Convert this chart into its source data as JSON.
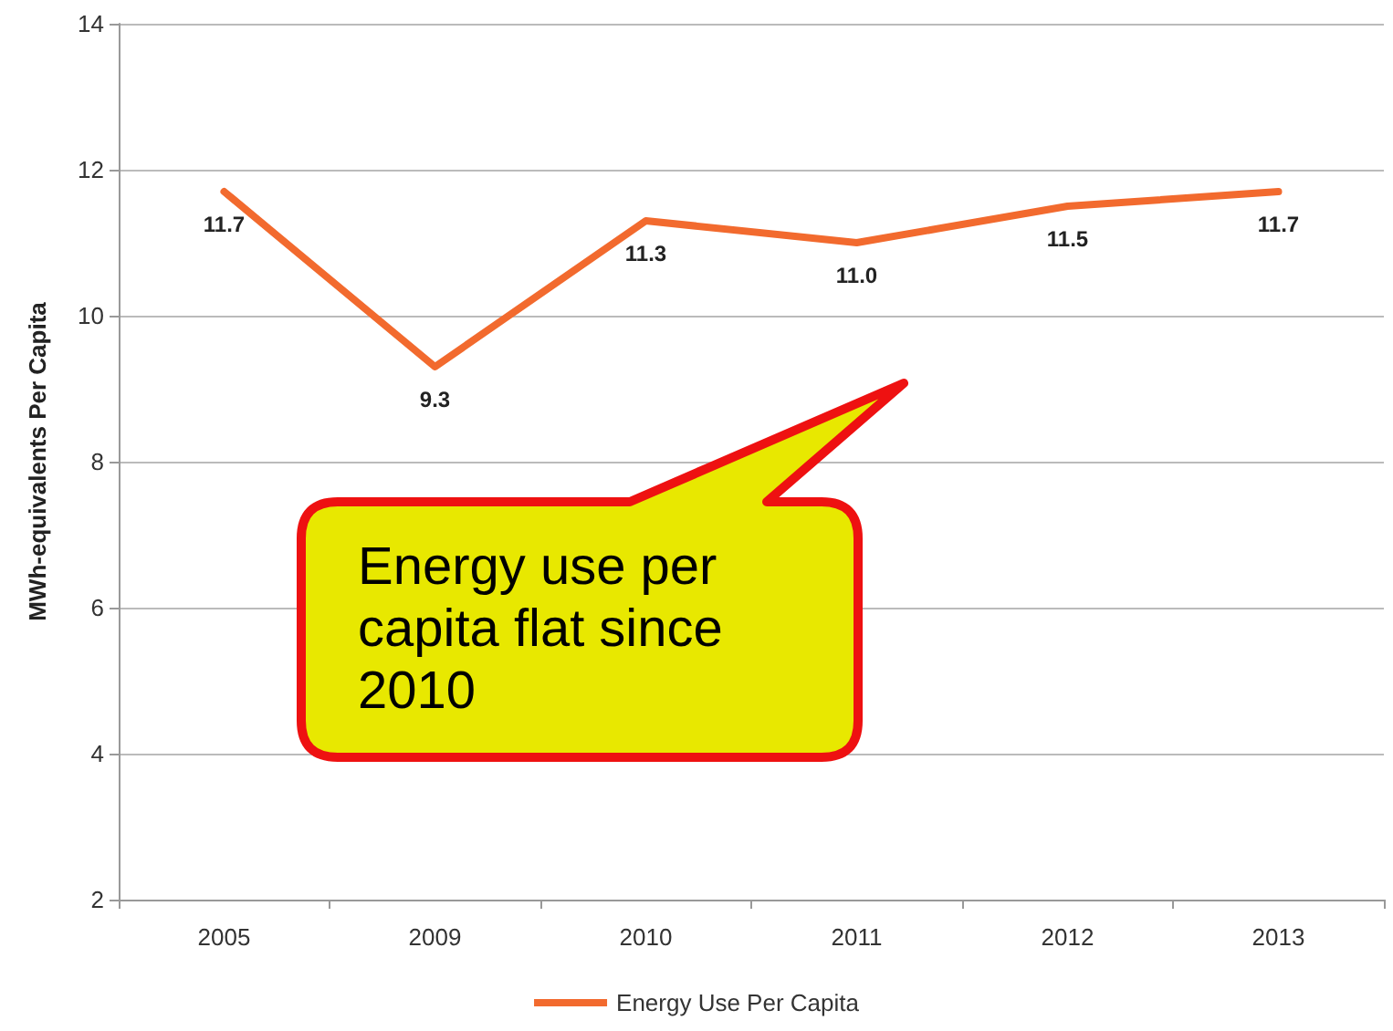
{
  "chart_data": {
    "type": "line",
    "ylabel": "MWh-equivalents Per Capita",
    "categories": [
      "2005",
      "2009",
      "2010",
      "2011",
      "2012",
      "2013"
    ],
    "series": [
      {
        "name": "Energy Use Per Capita",
        "color": "#f26a2e",
        "values": [
          11.7,
          9.3,
          11.3,
          11.0,
          11.5,
          11.7
        ],
        "value_labels": [
          "11.7",
          "9.3",
          "11.3",
          "11.0",
          "11.5",
          "11.7"
        ]
      }
    ],
    "ylim": [
      2,
      14
    ],
    "yticks": [
      2,
      4,
      6,
      8,
      10,
      12,
      14
    ],
    "grid": "y",
    "legend": "bottom",
    "marker": "none",
    "line_style": "solid",
    "annotations": [
      "Energy use per capita flat since 2010"
    ]
  }
}
